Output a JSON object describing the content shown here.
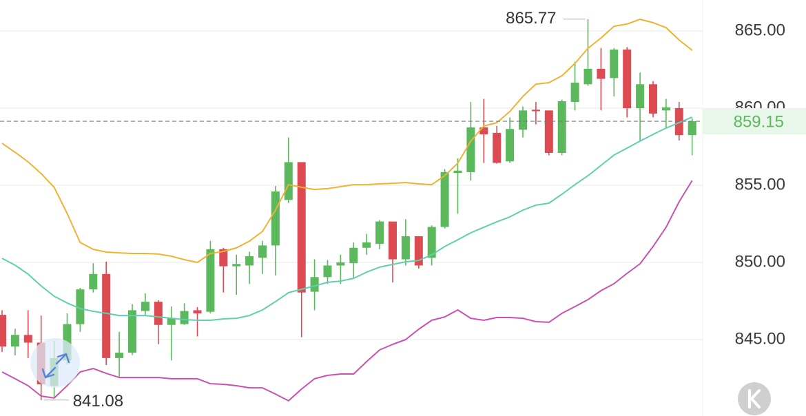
{
  "chart_data": {
    "type": "candlestick",
    "up_color": "#5cb85c",
    "down_color": "#dc4a52",
    "ylim": [
      840.045,
      867.009
    ],
    "yticks": [
      {
        "value": 845,
        "label": "845.00"
      },
      {
        "value": 850,
        "label": "850.00"
      },
      {
        "value": 855,
        "label": "855.00"
      },
      {
        "value": 860,
        "label": "860.00"
      },
      {
        "value": 865,
        "label": "865.00"
      }
    ],
    "grid": true,
    "open": [
      846.6,
      844.55,
      845.3,
      844.8,
      842.0,
      843.65,
      846.0,
      848.25,
      849.25,
      843.8,
      844.15,
      846.85,
      847.45,
      845.95,
      846.0,
      846.9,
      846.8,
      850.85,
      849.75,
      849.8,
      850.3,
      851.1,
      854.05,
      856.5,
      848.1,
      849.05,
      849.8,
      849.95,
      850.95,
      851.2,
      852.65,
      850.2,
      851.7,
      850.3,
      852.3,
      855.8,
      855.85,
      858.75,
      858.4,
      856.55,
      858.6,
      859.9,
      859.85,
      857.1,
      860.4,
      861.55,
      862.55,
      861.95,
      863.8,
      860.0,
      861.55,
      859.85,
      860.0,
      858.25
    ],
    "high": [
      846.9,
      845.7,
      846.9,
      846.55,
      844.9,
      846.7,
      848.35,
      849.95,
      850.05,
      845.5,
      847.3,
      848.0,
      847.55,
      847.15,
      847.35,
      847.1,
      851.4,
      850.95,
      850.5,
      850.7,
      851.4,
      854.95,
      858.1,
      856.5,
      850.2,
      850.15,
      850.5,
      851.3,
      851.85,
      852.75,
      852.65,
      852.8,
      851.7,
      852.4,
      856.05,
      856.75,
      860.4,
      860.6,
      858.85,
      859.4,
      860.1,
      860.4,
      859.85,
      860.55,
      863.0,
      865.77,
      863.9,
      863.9,
      863.95,
      862.3,
      861.75,
      860.6,
      860.4,
      859.35
    ],
    "low": [
      844.2,
      843.98,
      843.8,
      841.08,
      841.3,
      843.4,
      845.5,
      848.05,
      843.35,
      842.55,
      844.0,
      846.55,
      844.7,
      843.65,
      845.95,
      845.2,
      846.7,
      848.05,
      847.9,
      848.6,
      849.25,
      849.15,
      853.85,
      845.15,
      846.9,
      848.6,
      848.6,
      848.95,
      850.5,
      850.85,
      848.7,
      849.8,
      849.6,
      849.8,
      852.2,
      853.15,
      855.3,
      856.45,
      856.4,
      856.45,
      858.1,
      858.95,
      856.95,
      856.95,
      859.85,
      861.45,
      859.85,
      860.75,
      859.4,
      857.85,
      859.4,
      858.75,
      857.9,
      856.95
    ],
    "close": [
      844.55,
      845.3,
      844.8,
      842.1,
      843.8,
      846.0,
      848.25,
      849.25,
      843.8,
      844.15,
      846.9,
      847.45,
      845.95,
      846.4,
      846.85,
      846.7,
      850.85,
      849.75,
      849.9,
      850.4,
      851.1,
      854.6,
      856.5,
      848.05,
      849.05,
      849.8,
      850.0,
      850.95,
      851.3,
      852.65,
      850.2,
      851.7,
      849.8,
      852.3,
      855.85,
      855.95,
      858.75,
      858.3,
      856.45,
      858.65,
      859.85,
      859.8,
      857.1,
      860.45,
      861.65,
      862.55,
      861.9,
      863.8,
      860.0,
      861.55,
      859.65,
      860.05,
      858.25,
      859.15
    ],
    "bands": [
      {
        "color": "#f0b232",
        "values": [
          857.72,
          857.14,
          856.52,
          855.76,
          854.87,
          853.17,
          851.29,
          850.85,
          850.67,
          850.62,
          850.58,
          850.58,
          850.54,
          850.4,
          850.18,
          850.0,
          850.58,
          850.71,
          850.94,
          851.38,
          852.01,
          853.39,
          855.04,
          854.87,
          854.73,
          854.78,
          854.91,
          855.04,
          855.04,
          855.09,
          855.13,
          855.18,
          855.09,
          855.04,
          855.62,
          856.43,
          857.86,
          858.84,
          859.06,
          859.78,
          860.76,
          861.56,
          861.65,
          862.1,
          862.9,
          863.88,
          864.55,
          865.31,
          865.45,
          865.76,
          865.54,
          865.22,
          864.42,
          863.75
        ]
      },
      {
        "color": "#5fcfb0",
        "values": [
          850.27,
          849.82,
          849.24,
          848.48,
          847.81,
          847.37,
          847.01,
          846.83,
          846.7,
          846.56,
          846.56,
          846.56,
          846.47,
          846.38,
          846.29,
          846.25,
          846.25,
          846.34,
          846.38,
          846.56,
          846.92,
          847.46,
          848.04,
          848.26,
          848.48,
          848.71,
          848.79,
          848.97,
          849.37,
          849.69,
          849.87,
          850.04,
          850.13,
          850.49,
          851.03,
          851.47,
          851.92,
          852.28,
          852.63,
          852.95,
          853.39,
          853.71,
          853.84,
          854.42,
          855.04,
          855.62,
          856.29,
          856.96,
          857.41,
          857.86,
          858.3,
          858.71,
          859.06,
          859.42
        ]
      },
      {
        "color": "#cc50b0",
        "values": [
          842.9,
          842.46,
          842.01,
          841.34,
          841.21,
          842.01,
          842.9,
          843.12,
          842.81,
          842.54,
          842.54,
          842.54,
          842.54,
          842.46,
          842.46,
          842.46,
          842.14,
          842.1,
          842.01,
          841.87,
          841.87,
          841.47,
          841.03,
          841.79,
          842.46,
          842.68,
          842.77,
          842.77,
          843.57,
          844.33,
          844.69,
          845.0,
          845.67,
          846.25,
          846.47,
          846.92,
          846.38,
          846.25,
          846.43,
          846.43,
          846.38,
          846.16,
          846.12,
          846.7,
          847.14,
          847.59,
          848.17,
          848.62,
          849.29,
          849.91,
          851.03,
          852.28,
          853.93,
          855.31
        ]
      }
    ]
  }
}
